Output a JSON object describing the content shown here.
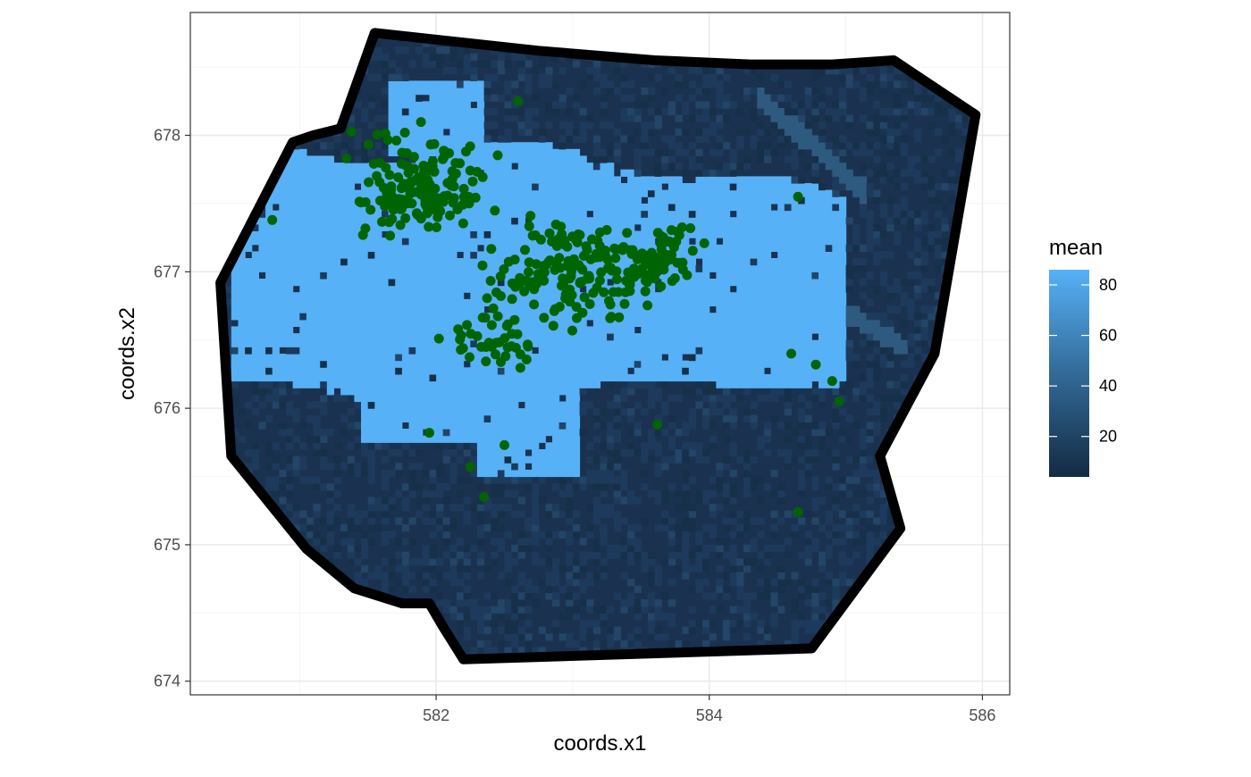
{
  "chart_data": {
    "type": "heatmap",
    "xlabel": "coords.x1",
    "ylabel": "coords.x2",
    "xlim": [
      580.2,
      586.2
    ],
    "ylim": [
      673.9,
      678.9
    ],
    "x_ticks": [
      582,
      584,
      586
    ],
    "y_ticks": [
      674,
      675,
      676,
      677,
      678
    ],
    "grid": true,
    "legend": {
      "title": "mean",
      "position": "right",
      "range": [
        4,
        86
      ],
      "ticks": [
        20,
        40,
        60,
        80
      ],
      "colors": {
        "low": "#132b43",
        "high": "#56b1f7"
      }
    },
    "colors": {
      "points": "#006400",
      "boundary": "#000000",
      "high_region": "#56b1f7",
      "low_region": "#1a324f"
    },
    "boundary": [
      [
        581.55,
        678.75
      ],
      [
        582.75,
        678.62
      ],
      [
        583.6,
        678.55
      ],
      [
        584.3,
        678.52
      ],
      [
        584.9,
        678.52
      ],
      [
        585.35,
        678.55
      ],
      [
        585.95,
        678.15
      ],
      [
        585.65,
        676.4
      ],
      [
        585.25,
        675.65
      ],
      [
        585.4,
        675.12
      ],
      [
        584.75,
        674.24
      ],
      [
        582.2,
        674.16
      ],
      [
        582.05,
        674.4
      ],
      [
        581.95,
        674.57
      ],
      [
        581.75,
        674.57
      ],
      [
        581.4,
        674.68
      ],
      [
        581.05,
        674.97
      ],
      [
        580.5,
        675.65
      ],
      [
        580.42,
        676.92
      ],
      [
        580.95,
        677.95
      ],
      [
        581.1,
        678.0
      ],
      [
        581.3,
        678.05
      ]
    ],
    "grid_cell": [
      0.05,
      0.05
    ],
    "raster_seed": 7
  }
}
